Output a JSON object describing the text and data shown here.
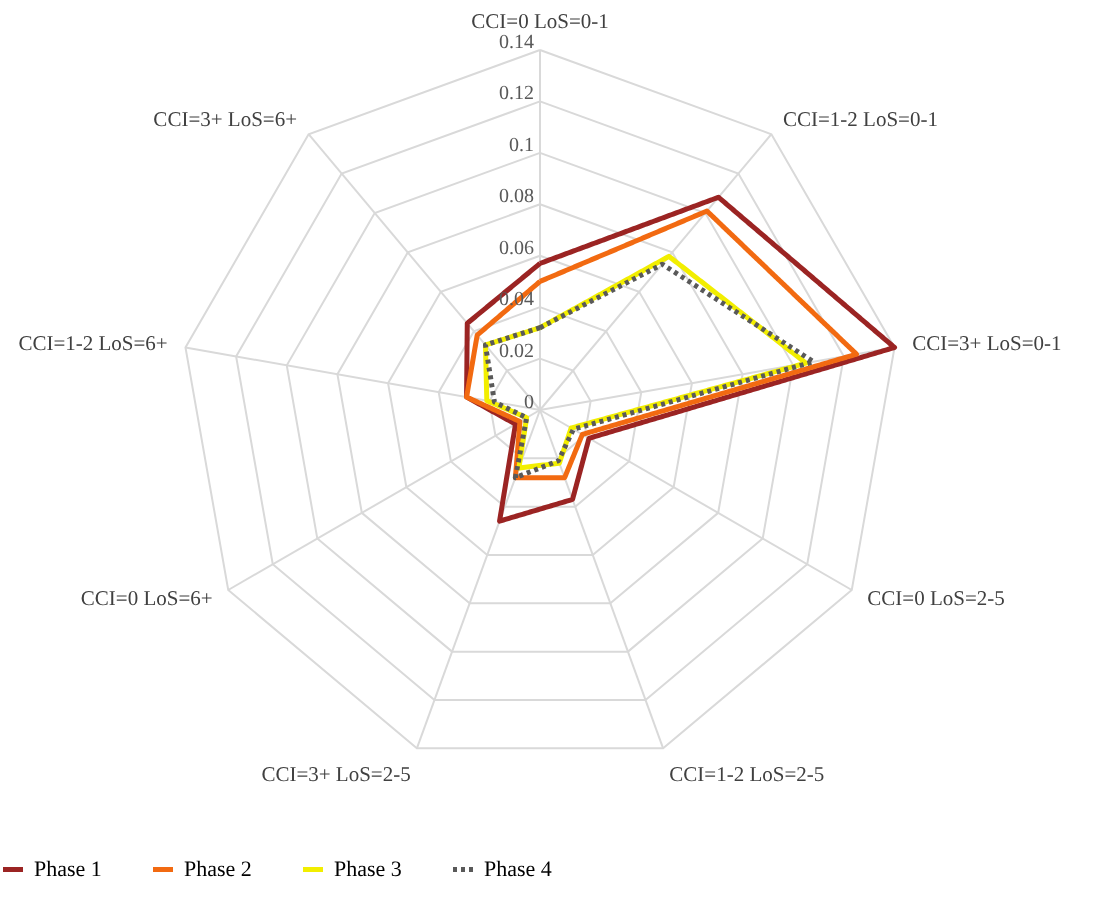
{
  "chart_data": {
    "type": "radar",
    "categories": [
      "CCI=0  LoS=0-1",
      "CCI=1-2  LoS=0-1",
      "CCI=3+  LoS=0-1",
      "CCI=0  LoS=2-5",
      "CCI=1-2  LoS=2-5",
      "CCI=3+  LoS=2-5",
      "CCI=0  LoS=6+",
      "CCI=1-2  LoS=6+",
      "CCI=3+  LoS=6+"
    ],
    "series": [
      {
        "name": "Phase 1",
        "color": "#9b2423",
        "values": [
          0.057,
          0.108,
          0.14,
          0.022,
          0.037,
          0.046,
          0.011,
          0.029,
          0.044
        ]
      },
      {
        "name": "Phase 2",
        "color": "#f26a11",
        "values": [
          0.05,
          0.101,
          0.125,
          0.019,
          0.028,
          0.028,
          0.009,
          0.029,
          0.038
        ]
      },
      {
        "name": "Phase 3",
        "color": "#f2ee00",
        "values": [
          0.032,
          0.078,
          0.105,
          0.014,
          0.022,
          0.024,
          0.006,
          0.021,
          0.033
        ]
      },
      {
        "name": "Phase 4",
        "color": "#595959",
        "values": [
          0.032,
          0.074,
          0.108,
          0.015,
          0.021,
          0.028,
          0.006,
          0.018,
          0.033
        ],
        "line_style": "dotted"
      }
    ],
    "ylim": [
      0,
      0.14
    ],
    "yticks": [
      0,
      0.02,
      0.04,
      0.06,
      0.08,
      0.1,
      0.12,
      0.14
    ],
    "grid": true,
    "legend": "bottom",
    "line_style": "solid",
    "marker": "none"
  }
}
